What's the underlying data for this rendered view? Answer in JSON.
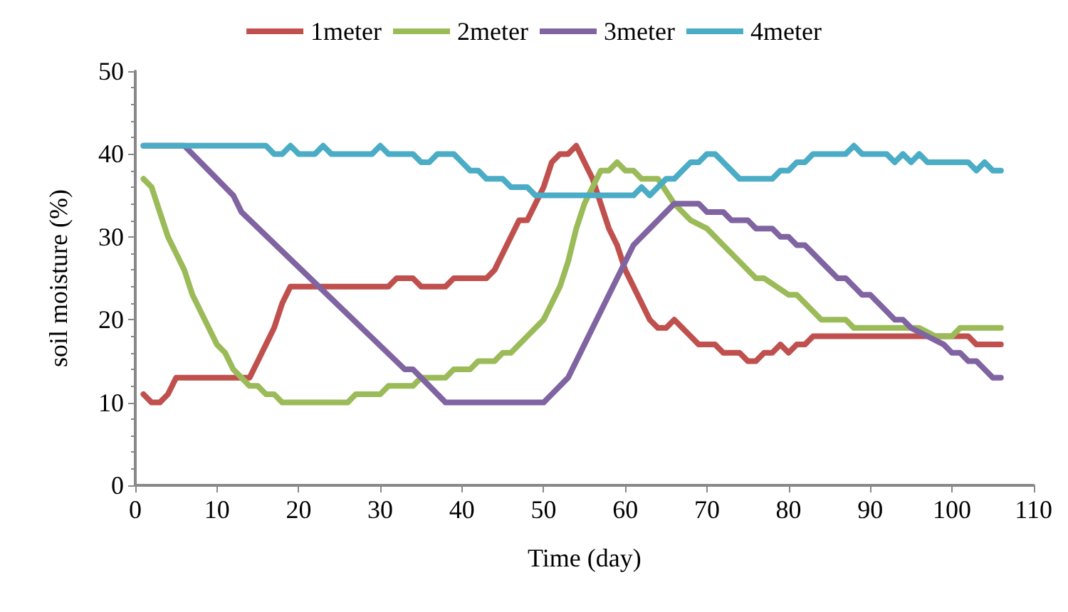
{
  "chart_data": {
    "type": "line",
    "xlabel": "Time (day)",
    "ylabel": "soil moisture (%)",
    "xlim": [
      0,
      110
    ],
    "xticks": [
      0,
      10,
      20,
      30,
      40,
      50,
      60,
      70,
      80,
      90,
      100,
      110
    ],
    "ylim": [
      0,
      50
    ],
    "yticks": [
      0,
      10,
      20,
      30,
      40,
      50
    ],
    "grid": false,
    "legend": "top",
    "marker": "none",
    "line_style": "solid",
    "series": [
      {
        "name": "1meter",
        "color": "#c0504d",
        "x": [
          1,
          2,
          3,
          4,
          5,
          6,
          14,
          15,
          16,
          17,
          18,
          19,
          31,
          32,
          34,
          35,
          38,
          39,
          43,
          44,
          45,
          46,
          47,
          48,
          49,
          50,
          51,
          52,
          53,
          54,
          55,
          56,
          57,
          58,
          59,
          60,
          61,
          62,
          63,
          64,
          65,
          66,
          67,
          68,
          69,
          70,
          71,
          72,
          73,
          74,
          75,
          76,
          77,
          78,
          79,
          80,
          81,
          82,
          83,
          100,
          101,
          102,
          103,
          106
        ],
        "values": [
          11,
          10,
          10,
          11,
          13,
          13,
          13,
          15,
          17,
          19,
          22,
          24,
          24,
          25,
          25,
          24,
          24,
          25,
          25,
          26,
          28,
          30,
          32,
          32,
          34,
          36,
          39,
          40,
          40,
          41,
          39,
          37,
          34,
          31,
          29,
          26,
          24,
          22,
          20,
          19,
          19,
          20,
          19,
          18,
          17,
          17,
          17,
          16,
          16,
          16,
          15,
          15,
          16,
          16,
          17,
          16,
          17,
          17,
          18,
          18,
          18,
          18,
          17,
          17
        ]
      },
      {
        "name": "2meter",
        "color": "#9bbb59",
        "x": [
          1,
          2,
          3,
          4,
          5,
          6,
          7,
          8,
          9,
          10,
          11,
          12,
          13,
          14,
          15,
          16,
          17,
          18,
          26,
          27,
          30,
          31,
          34,
          35,
          38,
          39,
          41,
          42,
          44,
          45,
          46,
          47,
          48,
          49,
          50,
          51,
          52,
          53,
          54,
          55,
          56,
          57,
          58,
          59,
          60,
          61,
          62,
          64,
          66,
          68,
          70,
          76,
          77,
          80,
          81,
          83,
          84,
          87,
          88,
          96,
          98,
          100,
          101,
          106
        ],
        "values": [
          37,
          36,
          33,
          30,
          28,
          26,
          23,
          21,
          19,
          17,
          16,
          14,
          13,
          12,
          12,
          11,
          11,
          10,
          10,
          11,
          11,
          12,
          12,
          13,
          13,
          14,
          14,
          15,
          15,
          16,
          16,
          17,
          18,
          19,
          20,
          22,
          24,
          27,
          31,
          34,
          36,
          38,
          38,
          39,
          38,
          38,
          37,
          37,
          34,
          32,
          31,
          25,
          25,
          23,
          23,
          21,
          20,
          20,
          19,
          19,
          18,
          18,
          19,
          19
        ]
      },
      {
        "name": "3meter",
        "color": "#8064a2",
        "x": [
          1,
          6,
          10,
          11,
          12,
          13,
          33,
          34,
          35,
          38,
          50,
          51,
          52,
          53,
          54,
          55,
          56,
          57,
          58,
          59,
          60,
          61,
          62,
          63,
          64,
          65,
          66,
          69,
          70,
          72,
          73,
          75,
          76,
          78,
          79,
          80,
          81,
          82,
          83,
          85,
          86,
          87,
          89,
          90,
          92,
          93,
          94,
          95,
          97,
          99,
          100,
          101,
          102,
          103,
          104,
          105,
          106
        ],
        "values": [
          41,
          41,
          37,
          36,
          35,
          33,
          14,
          14,
          13,
          10,
          10,
          11,
          12,
          13,
          15,
          17,
          19,
          21,
          23,
          25,
          27,
          29,
          30,
          31,
          32,
          33,
          34,
          34,
          33,
          33,
          32,
          32,
          31,
          31,
          30,
          30,
          29,
          29,
          28,
          26,
          25,
          25,
          23,
          23,
          21,
          20,
          20,
          19,
          18,
          17,
          16,
          16,
          15,
          15,
          14,
          13,
          13
        ]
      },
      {
        "name": "4meter",
        "color": "#4bacc6",
        "x": [
          1,
          16,
          17,
          18,
          19,
          20,
          22,
          23,
          24,
          29,
          30,
          31,
          34,
          35,
          36,
          37,
          39,
          40,
          41,
          42,
          43,
          45,
          46,
          48,
          49,
          61,
          62,
          63,
          64,
          65,
          66,
          67,
          68,
          69,
          70,
          71,
          72,
          73,
          74,
          78,
          79,
          80,
          81,
          82,
          83,
          87,
          88,
          89,
          92,
          93,
          94,
          95,
          96,
          97,
          102,
          103,
          104,
          105,
          106
        ],
        "values": [
          41,
          41,
          40,
          40,
          41,
          40,
          40,
          41,
          40,
          40,
          41,
          40,
          40,
          39,
          39,
          40,
          40,
          39,
          38,
          38,
          37,
          37,
          36,
          36,
          35,
          35,
          36,
          35,
          36,
          37,
          37,
          38,
          39,
          39,
          40,
          40,
          39,
          38,
          37,
          37,
          38,
          38,
          39,
          39,
          40,
          40,
          41,
          40,
          40,
          39,
          40,
          39,
          40,
          39,
          39,
          38,
          39,
          38,
          38
        ]
      }
    ]
  }
}
